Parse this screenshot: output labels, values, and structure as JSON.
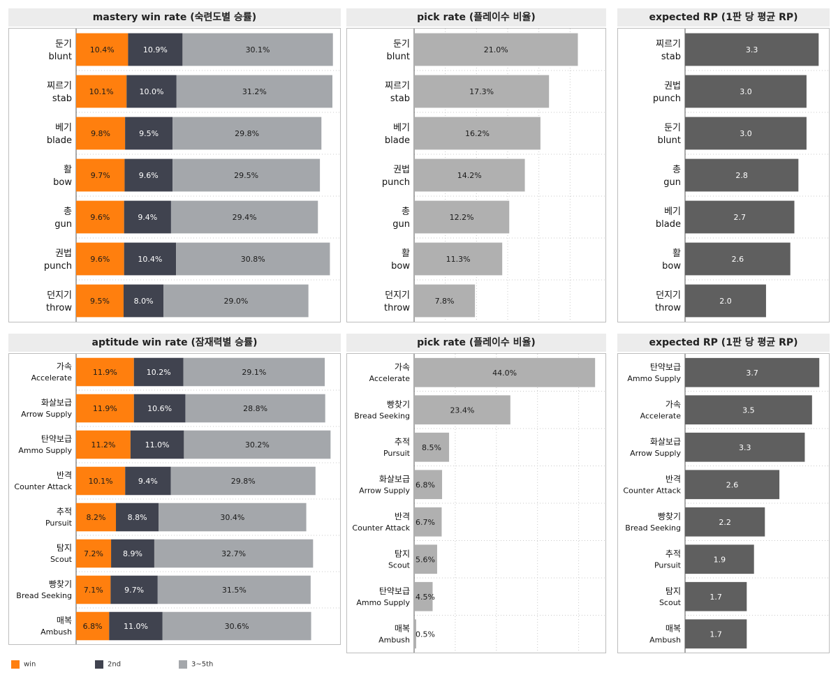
{
  "colors": {
    "win": "#ff7f0e",
    "second": "#40434f",
    "rest": "#a4a7ab",
    "pick": "#b0b0b0",
    "rp": "#5f5f5f"
  },
  "legend": [
    {
      "label": "win",
      "color": "#ff7f0e"
    },
    {
      "label": "2nd",
      "color": "#40434f"
    },
    {
      "label": "3~5th",
      "color": "#a4a7ab"
    }
  ],
  "chart_data": [
    {
      "type": "bar",
      "stacked": true,
      "orientation": "horizontal",
      "title": "mastery win rate (숙련도별 승률)",
      "categories": [
        [
          "둔기",
          "blunt"
        ],
        [
          "찌르기",
          "stab"
        ],
        [
          "베기",
          "blade"
        ],
        [
          "활",
          "bow"
        ],
        [
          "총",
          "gun"
        ],
        [
          "권법",
          "punch"
        ],
        [
          "던지기",
          "throw"
        ]
      ],
      "series": [
        {
          "name": "win",
          "values": [
            10.4,
            10.1,
            9.8,
            9.7,
            9.6,
            9.6,
            9.5
          ]
        },
        {
          "name": "2nd",
          "values": [
            10.9,
            10.0,
            9.5,
            9.6,
            9.4,
            10.4,
            8.0
          ]
        },
        {
          "name": "3~5th",
          "values": [
            30.1,
            31.2,
            29.8,
            29.5,
            29.4,
            30.8,
            29.0
          ]
        }
      ],
      "value_suffix": "%"
    },
    {
      "type": "bar",
      "orientation": "horizontal",
      "title": "pick rate (플레이수 비율)",
      "categories": [
        [
          "둔기",
          "blunt"
        ],
        [
          "찌르기",
          "stab"
        ],
        [
          "베기",
          "blade"
        ],
        [
          "권법",
          "punch"
        ],
        [
          "총",
          "gun"
        ],
        [
          "활",
          "bow"
        ],
        [
          "던지기",
          "throw"
        ]
      ],
      "values": [
        21.0,
        17.3,
        16.2,
        14.2,
        12.2,
        11.3,
        7.8
      ],
      "value_suffix": "%"
    },
    {
      "type": "bar",
      "orientation": "horizontal",
      "title": "expected RP (1판 당 평균 RP)",
      "categories": [
        [
          "찌르기",
          "stab"
        ],
        [
          "권법",
          "punch"
        ],
        [
          "둔기",
          "blunt"
        ],
        [
          "총",
          "gun"
        ],
        [
          "베기",
          "blade"
        ],
        [
          "활",
          "bow"
        ],
        [
          "던지기",
          "throw"
        ]
      ],
      "values": [
        3.3,
        3.0,
        3.0,
        2.8,
        2.7,
        2.6,
        2.0
      ],
      "value_suffix": ""
    },
    {
      "type": "bar",
      "stacked": true,
      "orientation": "horizontal",
      "title": "aptitude win rate (잠재력별 승률)",
      "categories": [
        [
          "가속",
          "Accelerate"
        ],
        [
          "화살보급",
          "Arrow Supply"
        ],
        [
          "탄약보급",
          "Ammo Supply"
        ],
        [
          "반격",
          "Counter Attack"
        ],
        [
          "추적",
          "Pursuit"
        ],
        [
          "탐지",
          "Scout"
        ],
        [
          "빵찾기",
          "Bread Seeking"
        ],
        [
          "매복",
          "Ambush"
        ]
      ],
      "series": [
        {
          "name": "win",
          "values": [
            11.9,
            11.9,
            11.2,
            10.1,
            8.2,
            7.2,
            7.1,
            6.8
          ]
        },
        {
          "name": "2nd",
          "values": [
            10.2,
            10.6,
            11.0,
            9.4,
            8.8,
            8.9,
            9.7,
            11.0
          ]
        },
        {
          "name": "3~5th",
          "values": [
            29.1,
            28.8,
            30.2,
            29.8,
            30.4,
            32.7,
            31.5,
            30.6
          ]
        }
      ],
      "value_suffix": "%"
    },
    {
      "type": "bar",
      "orientation": "horizontal",
      "title": "pick rate (플레이수 비율)",
      "categories": [
        [
          "가속",
          "Accelerate"
        ],
        [
          "빵찾기",
          "Bread Seeking"
        ],
        [
          "추적",
          "Pursuit"
        ],
        [
          "화살보급",
          "Arrow Supply"
        ],
        [
          "반격",
          "Counter Attack"
        ],
        [
          "탐지",
          "Scout"
        ],
        [
          "탄약보급",
          "Ammo Supply"
        ],
        [
          "매복",
          "Ambush"
        ]
      ],
      "values": [
        44.0,
        23.4,
        8.5,
        6.8,
        6.7,
        5.6,
        4.5,
        0.5
      ],
      "value_suffix": "%"
    },
    {
      "type": "bar",
      "orientation": "horizontal",
      "title": "expected RP (1판 당 평균 RP)",
      "categories": [
        [
          "탄약보급",
          "Ammo Supply"
        ],
        [
          "가속",
          "Accelerate"
        ],
        [
          "화살보급",
          "Arrow Supply"
        ],
        [
          "반격",
          "Counter Attack"
        ],
        [
          "빵찾기",
          "Bread Seeking"
        ],
        [
          "추적",
          "Pursuit"
        ],
        [
          "탐지",
          "Scout"
        ],
        [
          "매복",
          "Ambush"
        ]
      ],
      "values": [
        3.7,
        3.5,
        3.3,
        2.6,
        2.2,
        1.9,
        1.7,
        1.7
      ],
      "value_suffix": ""
    }
  ]
}
